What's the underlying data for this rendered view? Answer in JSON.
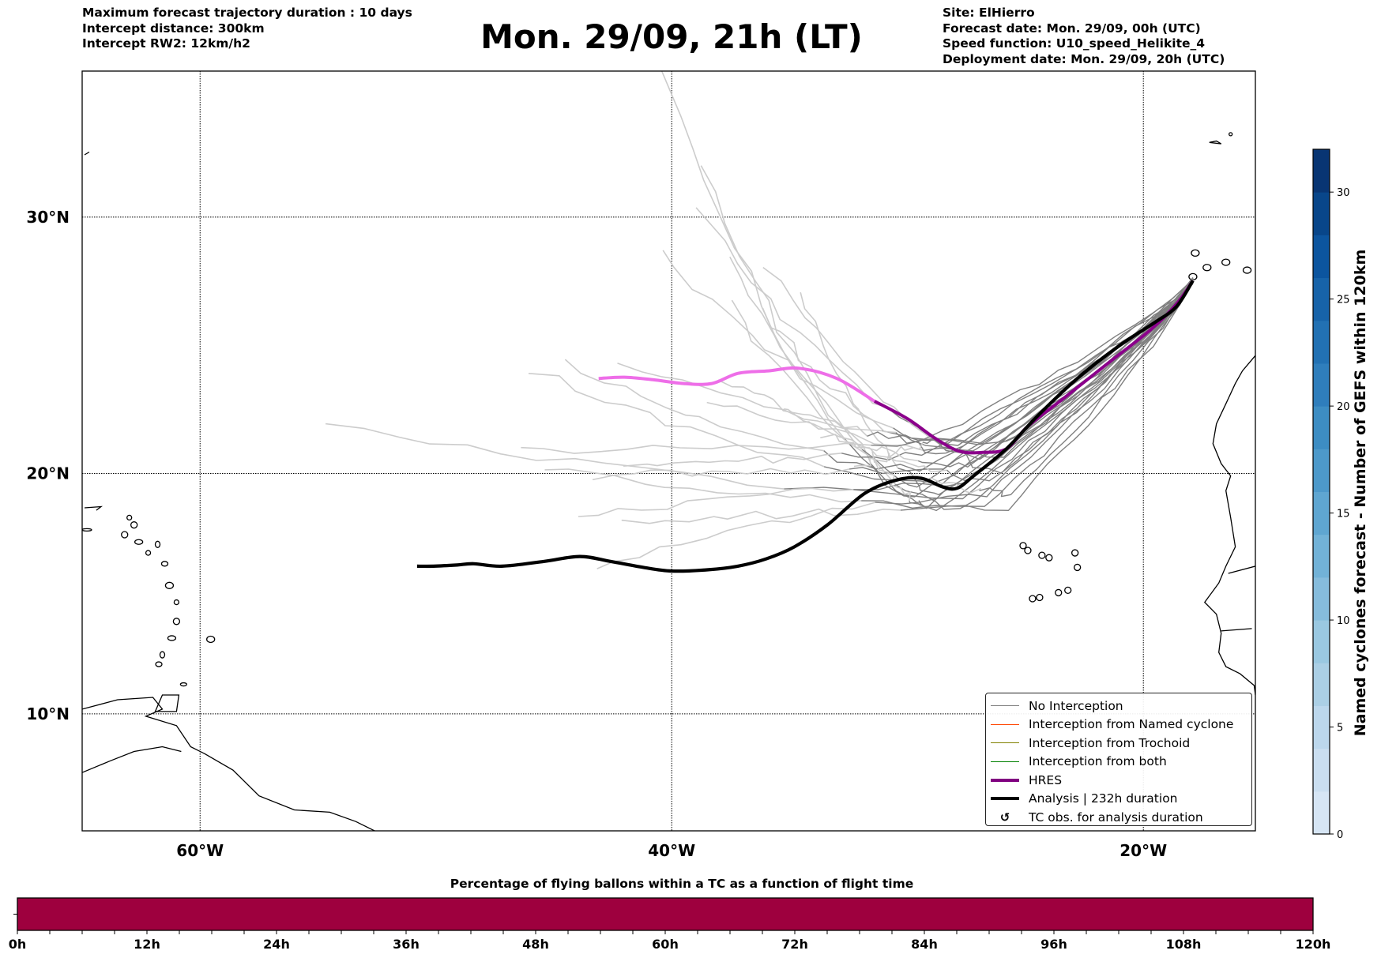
{
  "header": {
    "title": "Mon. 29/09, 21h (LT)",
    "left_lines": [
      "Maximum forecast trajectory duration : 10 days",
      "Intercept distance: 300km",
      "Intercept RW2: 12km/h2"
    ],
    "right_lines": [
      "Site: ElHierro",
      "Forecast date: Mon. 29/09, 00h (UTC)",
      "Speed function: U10_speed_Helikite_4",
      "Deployment date: Mon. 29/09, 20h (UTC)"
    ]
  },
  "map": {
    "projection": "mercator",
    "lon_range": [
      -65,
      -15.25
    ],
    "lat_range": [
      5,
      35.3
    ],
    "lon_ticks": [
      {
        "value": -60,
        "label": "60°W"
      },
      {
        "value": -40,
        "label": "40°W"
      },
      {
        "value": -20,
        "label": "20°W"
      }
    ],
    "lat_ticks": [
      {
        "value": 30,
        "label": "30°N"
      },
      {
        "value": 20,
        "label": "20°N"
      },
      {
        "value": 10,
        "label": "10°N"
      }
    ],
    "gridlines": "dotted",
    "colors": {
      "no_interception_early": "#808080",
      "no_interception_late": "#cccccc",
      "hres_early": "#8b008b",
      "hres_late": "#ee6ee8",
      "analysis": "#000000",
      "coast": "#000000"
    }
  },
  "legend": {
    "placement": "lower-right",
    "items": [
      {
        "label": "No Interception",
        "color": "#808080",
        "style": "thin-line"
      },
      {
        "label": "Interception from Named cyclone",
        "color": "#ff4500",
        "style": "thin-line"
      },
      {
        "label": "Interception from Trochoid",
        "color": "#808000",
        "style": "thin-line"
      },
      {
        "label": "Interception from both",
        "color": "#008000",
        "style": "thin-line"
      },
      {
        "label": "HRES",
        "color": "#800080",
        "style": "thick-line"
      },
      {
        "label": "Analysis | 232h duration",
        "color": "#000000",
        "style": "thick-line"
      },
      {
        "label": "TC obs. for analysis duration",
        "color": "#000000",
        "style": "marker",
        "glyph": "↺"
      }
    ]
  },
  "colorbar": {
    "title": "Named cyclones forecast - Number of GEFS within 120km",
    "range": [
      0,
      32
    ],
    "ticks": [
      0,
      5,
      10,
      15,
      20,
      25,
      30
    ],
    "levels": 16,
    "colors": [
      "#d6e5f4",
      "#cadef0",
      "#bcd7ec",
      "#abcfe5",
      "#9ac8e1",
      "#86bcdc",
      "#72b2d7",
      "#5fa6d1",
      "#4d99ca",
      "#3d8dc3",
      "#2f7ebc",
      "#2271b3",
      "#1763a9",
      "#0c559f",
      "#08468a",
      "#083573"
    ]
  },
  "chart_data": {
    "type": "bar",
    "title": "Percentage of flying ballons within a TC as a function of flight time",
    "xlabel": "",
    "ylabel": "",
    "xlim": [
      0,
      120
    ],
    "x_ticks": [
      "0h",
      "12h",
      "24h",
      "36h",
      "48h",
      "60h",
      "72h",
      "84h",
      "96h",
      "108h",
      "120h"
    ],
    "x_tick_values": [
      0,
      12,
      24,
      36,
      48,
      60,
      72,
      84,
      96,
      108,
      120
    ],
    "minor_tick_step_hours": 3,
    "segments": [
      {
        "start_h": 0,
        "end_h": 120,
        "percent": 0,
        "color": "#9e003e"
      }
    ]
  },
  "trajectories": {
    "analysis": [
      [
        -17.9,
        27.6
      ],
      [
        -18.6,
        26.6
      ],
      [
        -19.5,
        26.0
      ],
      [
        -21.0,
        25.1
      ],
      [
        -22.8,
        23.8
      ],
      [
        -24.5,
        22.3
      ],
      [
        -25.8,
        21.0
      ],
      [
        -27.2,
        19.9
      ],
      [
        -27.9,
        19.4
      ],
      [
        -28.5,
        19.45
      ],
      [
        -29.4,
        19.8
      ],
      [
        -30.4,
        19.75
      ],
      [
        -31.8,
        19.2
      ],
      [
        -33.4,
        17.9
      ],
      [
        -34.8,
        17.0
      ],
      [
        -36.0,
        16.5
      ],
      [
        -37.2,
        16.2
      ],
      [
        -38.5,
        16.05
      ],
      [
        -40.0,
        16.0
      ],
      [
        -41.2,
        16.15
      ],
      [
        -42.6,
        16.4
      ],
      [
        -43.9,
        16.6
      ],
      [
        -45.4,
        16.4
      ],
      [
        -47.2,
        16.2
      ],
      [
        -48.4,
        16.3
      ],
      [
        -49.1,
        16.25
      ],
      [
        -50.1,
        16.2
      ],
      [
        -50.8,
        16.2
      ]
    ],
    "hres_early": [
      [
        -17.9,
        27.6
      ],
      [
        -18.6,
        26.7
      ],
      [
        -19.7,
        25.7
      ],
      [
        -21.5,
        24.4
      ],
      [
        -23.4,
        23.0
      ],
      [
        -24.9,
        21.9
      ],
      [
        -25.8,
        21.0
      ],
      [
        -26.8,
        20.85
      ],
      [
        -27.8,
        20.9
      ],
      [
        -28.8,
        21.4
      ],
      [
        -30.0,
        22.2
      ],
      [
        -31.4,
        22.9
      ]
    ],
    "hres_late": [
      [
        -31.4,
        22.9
      ],
      [
        -33.0,
        23.8
      ],
      [
        -34.6,
        24.2
      ],
      [
        -35.9,
        24.1
      ],
      [
        -37.2,
        24.0
      ],
      [
        -38.3,
        23.6
      ],
      [
        -39.5,
        23.6
      ],
      [
        -40.8,
        23.75
      ],
      [
        -42.0,
        23.85
      ],
      [
        -43.1,
        23.8
      ]
    ]
  }
}
